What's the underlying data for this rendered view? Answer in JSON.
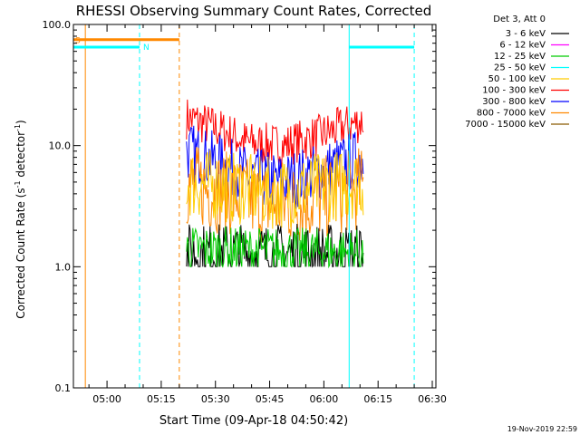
{
  "chart_data": {
    "type": "line",
    "title": "RHESSI Observing Summary Count Rates, Corrected",
    "xlabel": "Start Time (09-Apr-18 04:50:42)",
    "ylabel_main": "Corrected Count Rate (s",
    "ylabel_sup1": "-1",
    "ylabel_mid": " detector",
    "ylabel_sup2": "-1",
    "ylabel_end": ")",
    "yscale": "log",
    "ylim": [
      0.1,
      100
    ],
    "yticks": [
      "0.1",
      "1.0",
      "10.0",
      "100.0"
    ],
    "x_range_minutes": [
      "04:50:42",
      "06:31:00"
    ],
    "xticks": [
      "05:00",
      "05:15",
      "05:30",
      "05:45",
      "06:00",
      "06:15",
      "06:30"
    ],
    "timestamp": "19-Nov-2019 22:59",
    "legend": {
      "title": "Det 3, Att 0",
      "placement": "right",
      "entries": [
        {
          "label": "3 - 6 keV",
          "color": "#000000"
        },
        {
          "label": "6 - 12 keV",
          "color": "#ff00ff"
        },
        {
          "label": "12 - 25 keV",
          "color": "#00cc00"
        },
        {
          "label": "25 - 50 keV",
          "color": "#00ffff"
        },
        {
          "label": "50 - 100 keV",
          "color": "#ffcc00"
        },
        {
          "label": "100 - 300 keV",
          "color": "#ff0000"
        },
        {
          "label": "300 - 800 keV",
          "color": "#0000ff"
        },
        {
          "label": "800 - 7000 keV",
          "color": "#ff8800"
        },
        {
          "label": "7000 - 15000 keV",
          "color": "#8b5a00"
        }
      ]
    },
    "flags": {
      "saa": {
        "label": "S",
        "color": "#ff8800",
        "start": "04:50:42",
        "end": "05:20:00",
        "level": 75
      },
      "night": {
        "label": "N",
        "color": "#00ffff",
        "intervals": [
          [
            "04:50:42",
            "05:09:00"
          ],
          [
            "06:07:00",
            "06:25:00"
          ]
        ],
        "level": 65
      }
    },
    "vertical_lines": [
      {
        "time": "04:54:00",
        "color": "#ff8800",
        "style": "solid"
      },
      {
        "time": "05:09:00",
        "color": "#00ffff",
        "style": "dashed"
      },
      {
        "time": "05:20:00",
        "color": "#ff8800",
        "style": "dashed"
      },
      {
        "time": "06:07:00",
        "color": "#00ffff",
        "style": "solid"
      },
      {
        "time": "06:25:00",
        "color": "#00ffff",
        "style": "dashed"
      }
    ],
    "data_window": [
      "05:22:00",
      "06:11:00"
    ],
    "series": [
      {
        "name": "100 - 300 keV",
        "color": "#ff0000",
        "profile": [
          [
            0,
            17
          ],
          [
            0.35,
            10.5
          ],
          [
            0.55,
            10
          ],
          [
            0.75,
            12
          ],
          [
            1,
            16
          ]
        ],
        "noise": 0.18
      },
      {
        "name": "300 - 800 keV",
        "color": "#0000ff",
        "profile": [
          [
            0,
            9
          ],
          [
            0.35,
            5.5
          ],
          [
            0.55,
            5
          ],
          [
            0.75,
            6
          ],
          [
            1,
            8
          ]
        ],
        "noise": 0.25
      },
      {
        "name": "800 - 7000 keV",
        "color": "#ff8800",
        "profile": [
          [
            0,
            4.8
          ],
          [
            0.35,
            3.6
          ],
          [
            0.55,
            3.2
          ],
          [
            0.75,
            3.6
          ],
          [
            1,
            4.5
          ]
        ],
        "noise": 0.35
      },
      {
        "name": "50 - 100 keV",
        "color": "#ffcc00",
        "profile": [
          [
            0,
            5
          ],
          [
            0.5,
            4
          ],
          [
            1,
            5
          ]
        ],
        "noise": 0.3
      },
      {
        "name": "3 - 6 keV",
        "color": "#000000",
        "profile": [
          [
            0,
            1.3
          ],
          [
            1,
            1.3
          ]
        ],
        "noise": 0.25
      },
      {
        "name": "12 - 25 keV",
        "color": "#00cc00",
        "profile": [
          [
            0,
            1.4
          ],
          [
            1,
            1.3
          ]
        ],
        "noise": 0.2
      }
    ]
  }
}
